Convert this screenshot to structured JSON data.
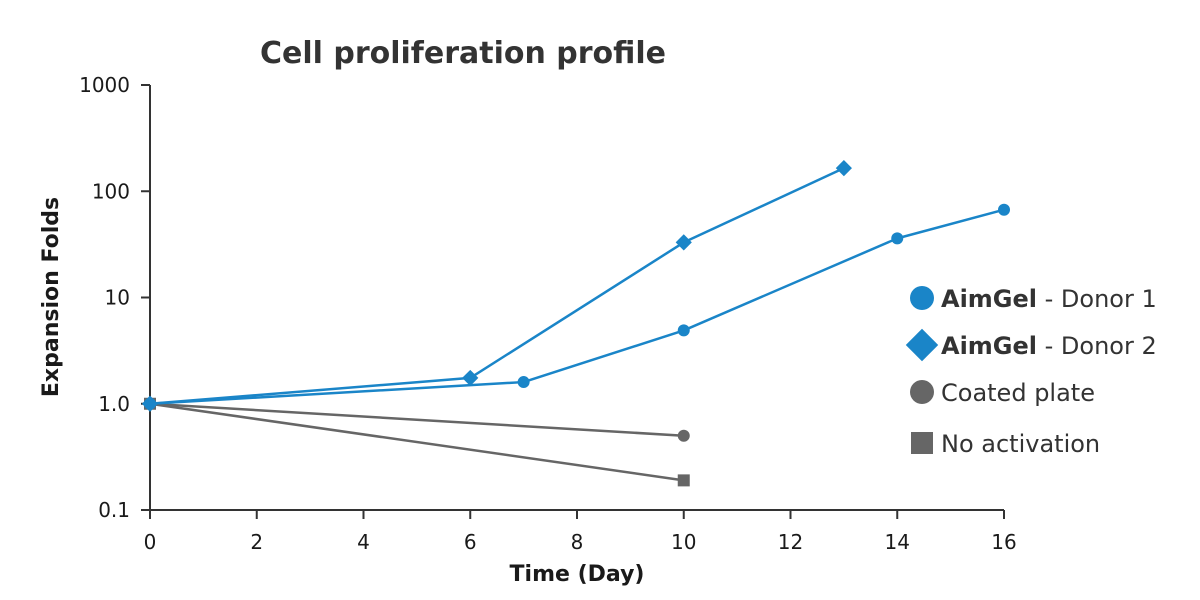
{
  "chart_data": {
    "type": "line",
    "title": "Cell proliferation profile",
    "xlabel": "Time (Day)",
    "ylabel": "Expansion Folds",
    "x_ticks": [
      "0",
      "2",
      "4",
      "6",
      "8",
      "10",
      "12",
      "14",
      "16"
    ],
    "xlim": [
      0,
      16
    ],
    "y_scale": "log",
    "y_ticks": [
      "0.1",
      "1.0",
      "10",
      "100",
      "1000"
    ],
    "ylim": [
      0.1,
      1000
    ],
    "grid": false,
    "legend_position": "right",
    "series": [
      {
        "name_bold": "AimGel",
        "name_rest": " - Donor 1",
        "marker": "circle",
        "color": "#1a85c8",
        "x": [
          0,
          7,
          10,
          14,
          16
        ],
        "y": [
          1.0,
          1.6,
          4.9,
          36,
          67
        ]
      },
      {
        "name_bold": "AimGel",
        "name_rest": " - Donor 2",
        "marker": "diamond",
        "color": "#1a85c8",
        "x": [
          0,
          6,
          10,
          13
        ],
        "y": [
          1.0,
          1.75,
          33,
          165
        ]
      },
      {
        "name_bold": "",
        "name_rest": "Coated plate",
        "marker": "circle",
        "color": "#666666",
        "x": [
          0,
          10
        ],
        "y": [
          1.0,
          0.5
        ]
      },
      {
        "name_bold": "",
        "name_rest": "No activation",
        "marker": "square",
        "color": "#666666",
        "x": [
          0,
          10
        ],
        "y": [
          1.0,
          0.19
        ]
      }
    ]
  }
}
